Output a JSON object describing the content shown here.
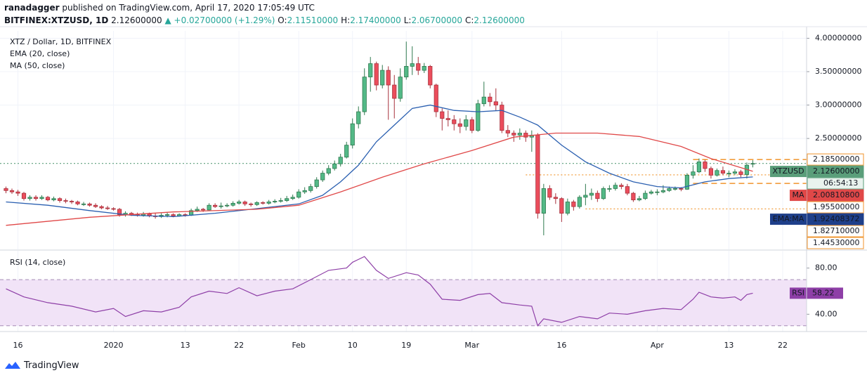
{
  "header": {
    "author": "ranadagger",
    "published": "published on TradingView.com, April 17, 2020 17:05:49 UTC",
    "symbol": "BITFINEX:XTZUSD, 1D",
    "last": "2.12600000",
    "change": "+0.02700000 (+1.29%)",
    "ohlc": [
      {
        "key": "O:",
        "value": "2.11510000"
      },
      {
        "key": "H:",
        "value": "2.17400000"
      },
      {
        "key": "L:",
        "value": "2.06700000"
      },
      {
        "key": "C:",
        "value": "2.12600000"
      }
    ]
  },
  "footer": {
    "brand": "TradingView"
  },
  "chart_data": [
    {
      "type": "candlestick",
      "title": "XTZ / Dollar, 1D, BITFINEX",
      "x": [
        "2019-12-14",
        "2019-12-15",
        "2019-12-16",
        "2019-12-17",
        "2019-12-18",
        "2019-12-19",
        "2019-12-20",
        "2019-12-21",
        "2019-12-22",
        "2019-12-23",
        "2019-12-24",
        "2019-12-25",
        "2019-12-26",
        "2019-12-27",
        "2019-12-28",
        "2019-12-29",
        "2019-12-30",
        "2019-12-31",
        "2020-01-01",
        "2020-01-02",
        "2020-01-03",
        "2020-01-04",
        "2020-01-05",
        "2020-01-06",
        "2020-01-07",
        "2020-01-08",
        "2020-01-09",
        "2020-01-10",
        "2020-01-11",
        "2020-01-12",
        "2020-01-13",
        "2020-01-14",
        "2020-01-15",
        "2020-01-16",
        "2020-01-17",
        "2020-01-18",
        "2020-01-19",
        "2020-01-20",
        "2020-01-21",
        "2020-01-22",
        "2020-01-23",
        "2020-01-24",
        "2020-01-25",
        "2020-01-26",
        "2020-01-27",
        "2020-01-28",
        "2020-01-29",
        "2020-01-30",
        "2020-01-31",
        "2020-02-01",
        "2020-02-02",
        "2020-02-03",
        "2020-02-04",
        "2020-02-05",
        "2020-02-06",
        "2020-02-07",
        "2020-02-08",
        "2020-02-09",
        "2020-02-10",
        "2020-02-11",
        "2020-02-12",
        "2020-02-13",
        "2020-02-14",
        "2020-02-15",
        "2020-02-16",
        "2020-02-17",
        "2020-02-18",
        "2020-02-19",
        "2020-02-20",
        "2020-02-21",
        "2020-02-22",
        "2020-02-23",
        "2020-02-24",
        "2020-02-25",
        "2020-02-26",
        "2020-02-27",
        "2020-02-28",
        "2020-02-29",
        "2020-03-01",
        "2020-03-02",
        "2020-03-03",
        "2020-03-04",
        "2020-03-05",
        "2020-03-06",
        "2020-03-07",
        "2020-03-08",
        "2020-03-09",
        "2020-03-10",
        "2020-03-11",
        "2020-03-12",
        "2020-03-13",
        "2020-03-14",
        "2020-03-15",
        "2020-03-16",
        "2020-03-17",
        "2020-03-18",
        "2020-03-19",
        "2020-03-20",
        "2020-03-21",
        "2020-03-22",
        "2020-03-23",
        "2020-03-24",
        "2020-03-25",
        "2020-03-26",
        "2020-03-27",
        "2020-03-28",
        "2020-03-29",
        "2020-03-30",
        "2020-03-31",
        "2020-04-01",
        "2020-04-02",
        "2020-04-03",
        "2020-04-04",
        "2020-04-05",
        "2020-04-06",
        "2020-04-07",
        "2020-04-08",
        "2020-04-09",
        "2020-04-10",
        "2020-04-11",
        "2020-04-12",
        "2020-04-13",
        "2020-04-14",
        "2020-04-15",
        "2020-04-16",
        "2020-04-17"
      ],
      "open": [
        1.75,
        1.72,
        1.7,
        1.68,
        1.6,
        1.62,
        1.6,
        1.62,
        1.58,
        1.6,
        1.57,
        1.56,
        1.55,
        1.52,
        1.52,
        1.5,
        1.48,
        1.46,
        1.45,
        1.44,
        1.36,
        1.38,
        1.36,
        1.35,
        1.37,
        1.34,
        1.33,
        1.35,
        1.36,
        1.34,
        1.36,
        1.35,
        1.42,
        1.44,
        1.43,
        1.5,
        1.48,
        1.49,
        1.5,
        1.53,
        1.55,
        1.52,
        1.51,
        1.54,
        1.53,
        1.55,
        1.56,
        1.57,
        1.6,
        1.62,
        1.7,
        1.72,
        1.78,
        1.88,
        1.98,
        2.05,
        2.12,
        2.22,
        2.4,
        2.72,
        2.9,
        3.42,
        3.62,
        3.3,
        3.52,
        3.3,
        3.1,
        3.42,
        3.58,
        3.62,
        3.52,
        3.58,
        3.3,
        2.9,
        2.8,
        2.78,
        2.72,
        2.68,
        2.78,
        2.62,
        3.02,
        3.12,
        3.05,
        3.0,
        2.62,
        2.58,
        2.55,
        2.58,
        2.52,
        2.55,
        1.38,
        1.75,
        1.62,
        1.6,
        1.38,
        1.55,
        1.48,
        1.62,
        1.65,
        1.68,
        1.6,
        1.75,
        1.75,
        1.8,
        1.78,
        1.68,
        1.58,
        1.6,
        1.68,
        1.7,
        1.7,
        1.72,
        1.75,
        1.75,
        1.74,
        1.95,
        2.0,
        2.15,
        2.05,
        1.95,
        2.02,
        1.98,
        1.98,
        2.0,
        1.96,
        2.1151
      ],
      "high": [
        1.78,
        1.75,
        1.73,
        1.7,
        1.65,
        1.65,
        1.65,
        1.64,
        1.63,
        1.62,
        1.6,
        1.58,
        1.57,
        1.55,
        1.54,
        1.53,
        1.5,
        1.49,
        1.47,
        1.46,
        1.41,
        1.4,
        1.39,
        1.4,
        1.39,
        1.38,
        1.38,
        1.39,
        1.38,
        1.38,
        1.38,
        1.45,
        1.48,
        1.46,
        1.53,
        1.53,
        1.54,
        1.53,
        1.56,
        1.58,
        1.57,
        1.54,
        1.56,
        1.56,
        1.58,
        1.59,
        1.61,
        1.64,
        1.66,
        1.74,
        1.77,
        1.82,
        1.92,
        2.02,
        2.1,
        2.17,
        2.27,
        2.45,
        2.8,
        2.98,
        3.55,
        3.72,
        3.65,
        3.6,
        3.58,
        3.45,
        3.55,
        3.95,
        3.88,
        3.72,
        3.63,
        3.6,
        3.32,
        2.95,
        2.92,
        2.85,
        2.8,
        2.85,
        2.82,
        3.08,
        3.35,
        3.18,
        3.25,
        3.05,
        2.7,
        2.62,
        2.65,
        2.62,
        2.62,
        2.58,
        1.82,
        1.8,
        1.68,
        1.62,
        1.6,
        1.58,
        1.65,
        1.82,
        1.75,
        1.72,
        1.78,
        1.8,
        1.84,
        1.83,
        1.82,
        1.7,
        1.64,
        1.72,
        1.73,
        1.74,
        1.8,
        1.78,
        1.78,
        1.77,
        1.98,
        2.1,
        2.2,
        2.18,
        2.08,
        2.05,
        2.08,
        2.02,
        2.04,
        2.03,
        2.14,
        2.174
      ],
      "low": [
        1.68,
        1.67,
        1.64,
        1.57,
        1.57,
        1.57,
        1.58,
        1.56,
        1.56,
        1.54,
        1.53,
        1.52,
        1.5,
        1.49,
        1.48,
        1.46,
        1.44,
        1.43,
        1.42,
        1.33,
        1.33,
        1.34,
        1.33,
        1.33,
        1.32,
        1.3,
        1.31,
        1.32,
        1.32,
        1.33,
        1.33,
        1.34,
        1.4,
        1.4,
        1.42,
        1.46,
        1.45,
        1.47,
        1.48,
        1.51,
        1.49,
        1.48,
        1.49,
        1.51,
        1.51,
        1.53,
        1.54,
        1.55,
        1.58,
        1.6,
        1.67,
        1.69,
        1.75,
        1.85,
        1.95,
        2.02,
        2.08,
        2.2,
        2.35,
        2.65,
        2.85,
        3.2,
        3.22,
        3.25,
        2.78,
        2.8,
        3.05,
        3.38,
        3.45,
        3.45,
        3.48,
        3.25,
        2.82,
        2.62,
        2.68,
        2.62,
        2.58,
        2.62,
        2.58,
        2.6,
        2.98,
        2.98,
        2.92,
        2.58,
        2.52,
        2.45,
        2.48,
        2.45,
        2.3,
        1.3,
        1.05,
        1.58,
        1.52,
        1.25,
        1.35,
        1.42,
        1.45,
        1.5,
        1.58,
        1.55,
        1.58,
        1.7,
        1.72,
        1.74,
        1.65,
        1.55,
        1.56,
        1.58,
        1.66,
        1.65,
        1.68,
        1.7,
        1.72,
        1.71,
        1.73,
        1.9,
        1.98,
        2.0,
        1.9,
        1.93,
        1.95,
        1.92,
        1.95,
        1.92,
        1.9,
        2.067
      ],
      "close": [
        1.72,
        1.7,
        1.68,
        1.6,
        1.62,
        1.6,
        1.62,
        1.58,
        1.6,
        1.57,
        1.56,
        1.55,
        1.52,
        1.52,
        1.5,
        1.48,
        1.46,
        1.45,
        1.44,
        1.36,
        1.38,
        1.36,
        1.35,
        1.37,
        1.34,
        1.33,
        1.35,
        1.36,
        1.34,
        1.36,
        1.35,
        1.42,
        1.44,
        1.43,
        1.5,
        1.48,
        1.49,
        1.5,
        1.53,
        1.55,
        1.52,
        1.51,
        1.54,
        1.53,
        1.55,
        1.56,
        1.57,
        1.6,
        1.62,
        1.7,
        1.72,
        1.78,
        1.88,
        1.98,
        2.05,
        2.12,
        2.22,
        2.4,
        2.72,
        2.9,
        3.42,
        3.62,
        3.3,
        3.52,
        3.3,
        3.1,
        3.42,
        3.58,
        3.62,
        3.52,
        3.58,
        3.3,
        2.9,
        2.8,
        2.78,
        2.72,
        2.68,
        2.78,
        2.62,
        3.02,
        3.12,
        3.05,
        3.0,
        2.62,
        2.58,
        2.55,
        2.58,
        2.52,
        2.55,
        1.38,
        1.75,
        1.62,
        1.6,
        1.38,
        1.55,
        1.48,
        1.62,
        1.65,
        1.68,
        1.6,
        1.75,
        1.75,
        1.8,
        1.78,
        1.68,
        1.58,
        1.6,
        1.68,
        1.7,
        1.7,
        1.72,
        1.75,
        1.75,
        1.74,
        1.95,
        2.0,
        2.15,
        2.05,
        1.95,
        2.02,
        1.98,
        1.98,
        2.0,
        1.96,
        2.1,
        2.126
      ],
      "up_color": "#53b987",
      "down_color": "#eb4d5c",
      "up_border": "#2f7a4f",
      "down_border": "#a8323d",
      "xlim": [
        "2019-12-13",
        "2020-04-26"
      ],
      "xticks": [
        {
          "value": "2019-12-16",
          "label": "16"
        },
        {
          "value": "2020-01-01",
          "label": "2020"
        },
        {
          "value": "2020-01-13",
          "label": "13"
        },
        {
          "value": "2020-01-22",
          "label": "22"
        },
        {
          "value": "2020-02-01",
          "label": "Feb"
        },
        {
          "value": "2020-02-10",
          "label": "10"
        },
        {
          "value": "2020-02-19",
          "label": "19"
        },
        {
          "value": "2020-03-01",
          "label": "Mar"
        },
        {
          "value": "2020-03-16",
          "label": "16"
        },
        {
          "value": "2020-04-01",
          "label": "Apr"
        },
        {
          "value": "2020-04-13",
          "label": "13"
        },
        {
          "value": "2020-04-22",
          "label": "22"
        }
      ],
      "ylim": [
        0.84,
        4.11
      ],
      "yticks": [
        {
          "value": 4,
          "label": "4.00000000"
        },
        {
          "value": 3.5,
          "label": "3.50000000"
        },
        {
          "value": 3,
          "label": "3.00000000"
        },
        {
          "value": 2.5,
          "label": "2.50000000"
        }
      ],
      "grid": true,
      "indicators": [
        {
          "name": "EMA (20, close)",
          "color": "#2a5fb0",
          "x": [
            "2019-12-14",
            "2019-12-21",
            "2019-12-28",
            "2020-01-04",
            "2020-01-11",
            "2020-01-18",
            "2020-01-25",
            "2020-02-01",
            "2020-02-05",
            "2020-02-08",
            "2020-02-11",
            "2020-02-14",
            "2020-02-17",
            "2020-02-20",
            "2020-02-23",
            "2020-02-27",
            "2020-03-02",
            "2020-03-06",
            "2020-03-09",
            "2020-03-12",
            "2020-03-16",
            "2020-03-20",
            "2020-03-24",
            "2020-03-28",
            "2020-04-01",
            "2020-04-05",
            "2020-04-09",
            "2020-04-13",
            "2020-04-17"
          ],
          "values": [
            1.55,
            1.5,
            1.42,
            1.35,
            1.33,
            1.38,
            1.45,
            1.52,
            1.65,
            1.85,
            2.1,
            2.45,
            2.7,
            2.95,
            3.0,
            2.92,
            2.9,
            2.92,
            2.82,
            2.7,
            2.4,
            2.15,
            1.98,
            1.85,
            1.78,
            1.76,
            1.85,
            1.9,
            1.924
          ]
        },
        {
          "name": "MA (50, close)",
          "color": "#e04848",
          "x": [
            "2019-12-14",
            "2019-12-28",
            "2020-01-11",
            "2020-01-25",
            "2020-02-01",
            "2020-02-08",
            "2020-02-15",
            "2020-02-22",
            "2020-03-01",
            "2020-03-08",
            "2020-03-15",
            "2020-03-22",
            "2020-03-29",
            "2020-04-05",
            "2020-04-10",
            "2020-04-17"
          ],
          "values": [
            1.2,
            1.32,
            1.4,
            1.44,
            1.5,
            1.7,
            1.92,
            2.12,
            2.32,
            2.52,
            2.58,
            2.58,
            2.53,
            2.38,
            2.2,
            2.008
          ]
        }
      ],
      "price_labels": [
        {
          "value": 2.185,
          "label": "2.18500000",
          "color": "#f0932b",
          "line": "dashed",
          "start": "2020-04-07"
        },
        {
          "name": "XTZUSD",
          "value": 2.126,
          "label": "2.12600000",
          "color": "#5a9e7a",
          "line": "dotted",
          "start": "2019-12-13",
          "countdown": "06:54:13"
        },
        {
          "name": "MA",
          "value": 2.008108,
          "label": "2.00810800",
          "color": "#e04848"
        },
        {
          "value": 1.955,
          "label": "1.95500000",
          "color": "#f0932b",
          "line": "dotted",
          "start": "2020-03-10"
        },
        {
          "name": "EMA:MA",
          "value": 1.92408372,
          "label": "1.92408372",
          "color": "#1e3f8a"
        },
        {
          "value": 1.8271,
          "label": "1.82710000",
          "color": "#f0932b",
          "line": "dashed",
          "start": "2020-04-07"
        },
        {
          "value": 1.4453,
          "label": "1.44530000",
          "color": "#f0932b",
          "line": "dotted",
          "start": "2020-03-20"
        }
      ]
    },
    {
      "type": "line",
      "title": "RSI (14, close)",
      "x": [
        "2019-12-14",
        "2019-12-17",
        "2019-12-21",
        "2019-12-25",
        "2019-12-29",
        "2020-01-01",
        "2020-01-03",
        "2020-01-06",
        "2020-01-09",
        "2020-01-12",
        "2020-01-14",
        "2020-01-17",
        "2020-01-20",
        "2020-01-22",
        "2020-01-25",
        "2020-01-28",
        "2020-01-31",
        "2020-02-03",
        "2020-02-06",
        "2020-02-09",
        "2020-02-10",
        "2020-02-12",
        "2020-02-14",
        "2020-02-16",
        "2020-02-19",
        "2020-02-21",
        "2020-02-23",
        "2020-02-25",
        "2020-02-28",
        "2020-03-02",
        "2020-03-04",
        "2020-03-06",
        "2020-03-09",
        "2020-03-11",
        "2020-03-12",
        "2020-03-13",
        "2020-03-16",
        "2020-03-19",
        "2020-03-22",
        "2020-03-24",
        "2020-03-27",
        "2020-03-30",
        "2020-04-02",
        "2020-04-05",
        "2020-04-07",
        "2020-04-08",
        "2020-04-10",
        "2020-04-12",
        "2020-04-14",
        "2020-04-15",
        "2020-04-16",
        "2020-04-17"
      ],
      "series": [
        {
          "name": "RSI",
          "color": "#8e3fa7",
          "values": [
            62,
            55,
            50,
            47,
            42,
            45,
            38,
            43,
            42,
            46,
            55,
            60,
            58,
            63,
            56,
            60,
            62,
            70,
            78,
            80,
            85,
            90,
            78,
            71,
            76,
            74,
            66,
            53,
            52,
            57,
            58,
            50,
            48,
            47,
            30,
            36,
            33,
            38,
            36,
            41,
            40,
            43,
            45,
            44,
            53,
            59,
            55,
            54,
            55,
            52,
            57,
            58.22
          ]
        }
      ],
      "ylim": [
        25,
        95
      ],
      "yticks": [
        {
          "value": 80,
          "label": "80.00"
        },
        {
          "value": 40,
          "label": "40.00"
        }
      ],
      "band": [
        30,
        70
      ],
      "band_color": "#f1e3f7"
    }
  ]
}
